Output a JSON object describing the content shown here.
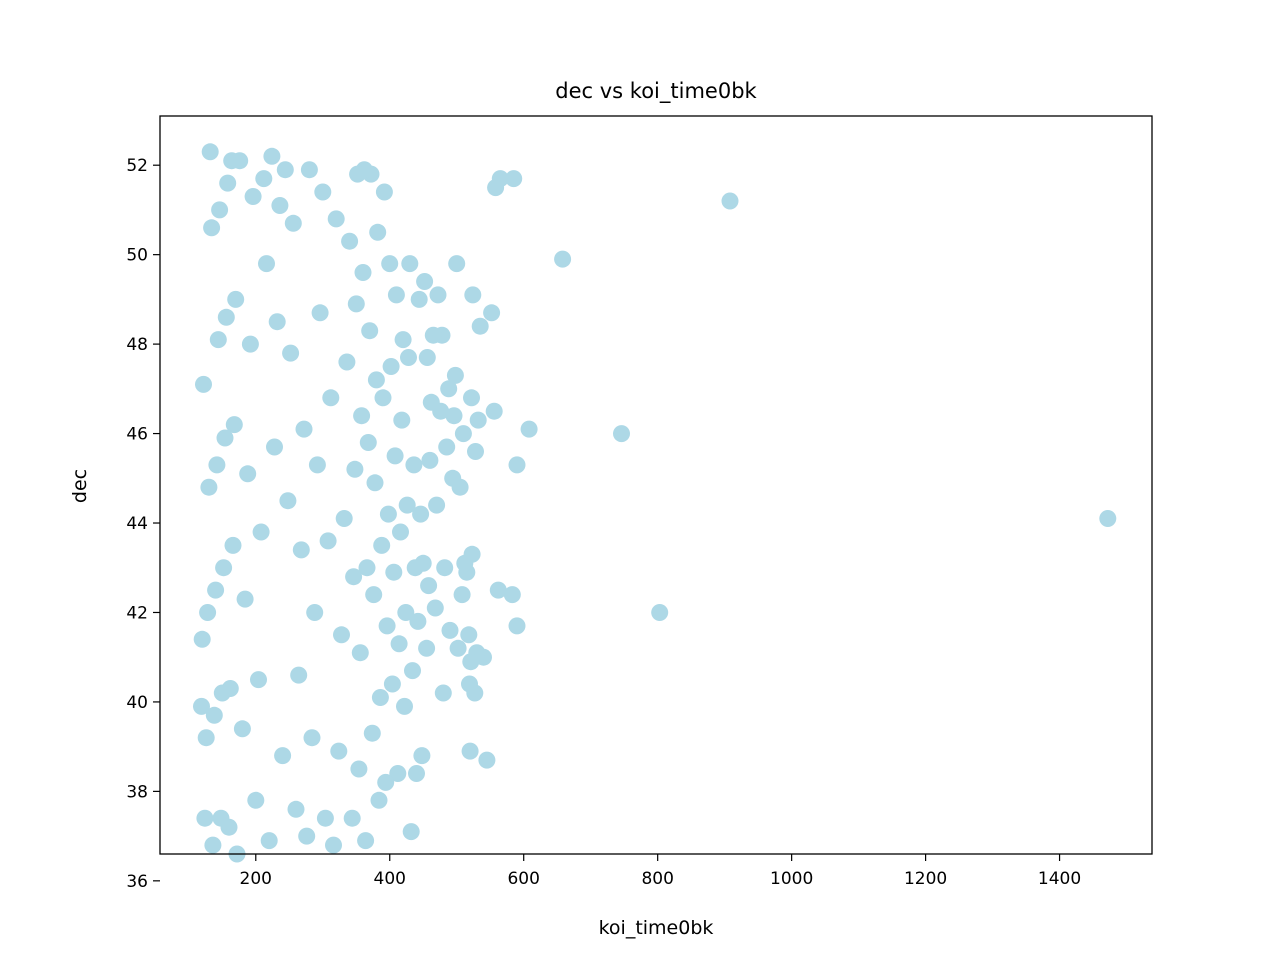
{
  "chart_data": {
    "type": "scatter",
    "title": "dec vs koi_time0bk",
    "xlabel": "koi_time0bk",
    "ylabel": "dec",
    "xlim": [
      57,
      1538
    ],
    "ylim": [
      36.6,
      53.1
    ],
    "xticks": [
      200,
      400,
      600,
      800,
      1000,
      1200,
      1400
    ],
    "yticks": [
      36,
      38,
      40,
      42,
      44,
      46,
      48,
      50,
      52
    ],
    "grid": false,
    "legend": "none",
    "marker_color": "#add8e6",
    "series": [
      {
        "points": [
          [
            1472,
            44.1
          ],
          [
            908,
            51.2
          ],
          [
            803,
            42.0
          ],
          [
            746,
            46.0
          ],
          [
            658,
            49.9
          ],
          [
            608,
            46.1
          ],
          [
            590,
            45.3
          ],
          [
            590,
            41.7
          ],
          [
            585,
            51.7
          ],
          [
            583,
            42.4
          ],
          [
            565,
            51.7
          ],
          [
            562,
            42.5
          ],
          [
            558,
            51.5
          ],
          [
            556,
            46.5
          ],
          [
            552,
            48.7
          ],
          [
            545,
            38.7
          ],
          [
            540,
            41.0
          ],
          [
            535,
            48.4
          ],
          [
            532,
            46.3
          ],
          [
            530,
            41.1
          ],
          [
            528,
            45.6
          ],
          [
            527,
            40.2
          ],
          [
            524,
            49.1
          ],
          [
            523,
            43.3
          ],
          [
            522,
            46.8
          ],
          [
            521,
            40.9
          ],
          [
            520,
            38.9
          ],
          [
            519,
            40.4
          ],
          [
            518,
            41.5
          ],
          [
            515,
            42.9
          ],
          [
            512,
            43.1
          ],
          [
            510,
            46.0
          ],
          [
            508,
            42.4
          ],
          [
            505,
            44.8
          ],
          [
            502,
            41.2
          ],
          [
            500,
            49.8
          ],
          [
            498,
            47.3
          ],
          [
            496,
            46.4
          ],
          [
            494,
            45.0
          ],
          [
            490,
            41.6
          ],
          [
            488,
            47.0
          ],
          [
            485,
            45.7
          ],
          [
            482,
            43.0
          ],
          [
            480,
            40.2
          ],
          [
            478,
            48.2
          ],
          [
            476,
            46.5
          ],
          [
            472,
            49.1
          ],
          [
            470,
            44.4
          ],
          [
            468,
            42.1
          ],
          [
            465,
            48.2
          ],
          [
            462,
            46.7
          ],
          [
            460,
            45.4
          ],
          [
            458,
            42.6
          ],
          [
            456,
            47.7
          ],
          [
            455,
            41.2
          ],
          [
            452,
            49.4
          ],
          [
            450,
            43.1
          ],
          [
            448,
            38.8
          ],
          [
            446,
            44.2
          ],
          [
            444,
            49.0
          ],
          [
            442,
            41.8
          ],
          [
            440,
            38.4
          ],
          [
            438,
            43.0
          ],
          [
            436,
            45.3
          ],
          [
            434,
            40.7
          ],
          [
            432,
            37.1
          ],
          [
            430,
            49.8
          ],
          [
            428,
            47.7
          ],
          [
            426,
            44.4
          ],
          [
            424,
            42.0
          ],
          [
            422,
            39.9
          ],
          [
            420,
            48.1
          ],
          [
            418,
            46.3
          ],
          [
            416,
            43.8
          ],
          [
            414,
            41.3
          ],
          [
            412,
            38.4
          ],
          [
            410,
            49.1
          ],
          [
            408,
            45.5
          ],
          [
            406,
            42.9
          ],
          [
            404,
            40.4
          ],
          [
            402,
            47.5
          ],
          [
            400,
            49.8
          ],
          [
            398,
            44.2
          ],
          [
            396,
            41.7
          ],
          [
            394,
            38.2
          ],
          [
            392,
            51.4
          ],
          [
            390,
            46.8
          ],
          [
            388,
            43.5
          ],
          [
            386,
            40.1
          ],
          [
            384,
            37.8
          ],
          [
            382,
            50.5
          ],
          [
            380,
            47.2
          ],
          [
            378,
            44.9
          ],
          [
            376,
            42.4
          ],
          [
            374,
            39.3
          ],
          [
            372,
            51.8
          ],
          [
            370,
            48.3
          ],
          [
            368,
            45.8
          ],
          [
            366,
            43.0
          ],
          [
            364,
            36.9
          ],
          [
            362,
            51.9
          ],
          [
            360,
            49.6
          ],
          [
            358,
            46.4
          ],
          [
            356,
            41.1
          ],
          [
            354,
            38.5
          ],
          [
            352,
            51.8
          ],
          [
            350,
            48.9
          ],
          [
            348,
            45.2
          ],
          [
            346,
            42.8
          ],
          [
            344,
            37.4
          ],
          [
            340,
            50.3
          ],
          [
            336,
            47.6
          ],
          [
            332,
            44.1
          ],
          [
            328,
            41.5
          ],
          [
            324,
            38.9
          ],
          [
            320,
            50.8
          ],
          [
            316,
            36.8
          ],
          [
            312,
            46.8
          ],
          [
            308,
            43.6
          ],
          [
            304,
            37.4
          ],
          [
            300,
            51.4
          ],
          [
            296,
            48.7
          ],
          [
            292,
            45.3
          ],
          [
            288,
            42.0
          ],
          [
            284,
            39.2
          ],
          [
            280,
            51.9
          ],
          [
            276,
            37.0
          ],
          [
            272,
            46.1
          ],
          [
            268,
            43.4
          ],
          [
            264,
            40.6
          ],
          [
            260,
            37.6
          ],
          [
            256,
            50.7
          ],
          [
            252,
            47.8
          ],
          [
            248,
            44.5
          ],
          [
            244,
            51.9
          ],
          [
            240,
            38.8
          ],
          [
            236,
            51.1
          ],
          [
            232,
            48.5
          ],
          [
            228,
            45.7
          ],
          [
            224,
            52.2
          ],
          [
            220,
            36.9
          ],
          [
            216,
            49.8
          ],
          [
            212,
            51.7
          ],
          [
            208,
            43.8
          ],
          [
            204,
            40.5
          ],
          [
            200,
            37.8
          ],
          [
            196,
            51.3
          ],
          [
            192,
            48.0
          ],
          [
            188,
            45.1
          ],
          [
            184,
            42.3
          ],
          [
            180,
            39.4
          ],
          [
            176,
            52.1
          ],
          [
            172,
            36.6
          ],
          [
            170,
            49.0
          ],
          [
            168,
            46.2
          ],
          [
            166,
            43.5
          ],
          [
            164,
            52.1
          ],
          [
            162,
            40.3
          ],
          [
            160,
            37.2
          ],
          [
            158,
            51.6
          ],
          [
            156,
            48.6
          ],
          [
            154,
            45.9
          ],
          [
            152,
            43.0
          ],
          [
            150,
            40.2
          ],
          [
            148,
            37.4
          ],
          [
            146,
            51.0
          ],
          [
            144,
            48.1
          ],
          [
            142,
            45.3
          ],
          [
            140,
            42.5
          ],
          [
            138,
            39.7
          ],
          [
            136,
            36.8
          ],
          [
            134,
            50.6
          ],
          [
            132,
            52.3
          ],
          [
            130,
            44.8
          ],
          [
            128,
            42.0
          ],
          [
            126,
            39.2
          ],
          [
            124,
            37.4
          ],
          [
            122,
            47.1
          ],
          [
            120,
            41.4
          ],
          [
            119,
            39.9
          ]
        ]
      }
    ]
  }
}
